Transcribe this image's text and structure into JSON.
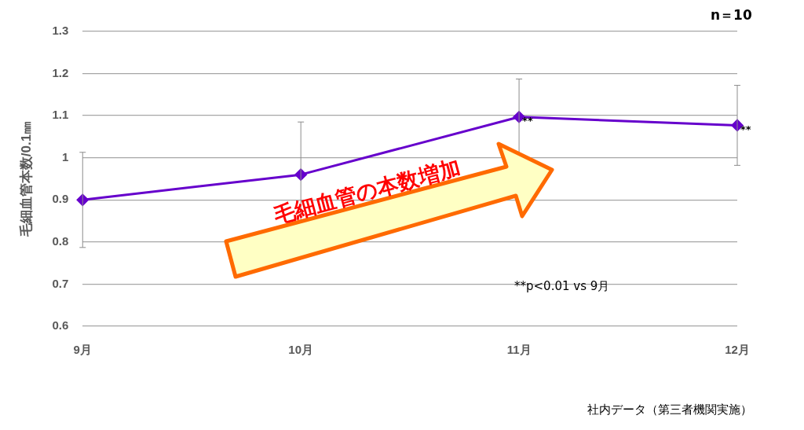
{
  "chart_data": {
    "type": "line",
    "ylabel": "毛細血管本数/0.1㎜",
    "categories": [
      "9月",
      "10月",
      "11月",
      "12月"
    ],
    "series": [
      {
        "color": "#6600cc",
        "values": [
          0.9,
          0.96,
          1.097,
          1.077
        ],
        "errors": [
          0.113,
          0.125,
          0.09,
          0.095
        ]
      }
    ],
    "ylim": [
      0.6,
      1.3
    ],
    "yticks": [
      0.6,
      0.7,
      0.8,
      0.9,
      1,
      1.1,
      1.2,
      1.3
    ],
    "grid": "y",
    "legend": false,
    "marker": "diamond",
    "line_style": "solid",
    "annotations": [
      "n＝10",
      "**p<0.01 vs 9月",
      "社内データ（第三者機関実施）",
      "毛細血管の本数増加",
      {
        "text": "**",
        "x": "11月",
        "y": 1.097
      },
      {
        "text": "**",
        "x": "12月",
        "y": 1.077
      }
    ]
  }
}
